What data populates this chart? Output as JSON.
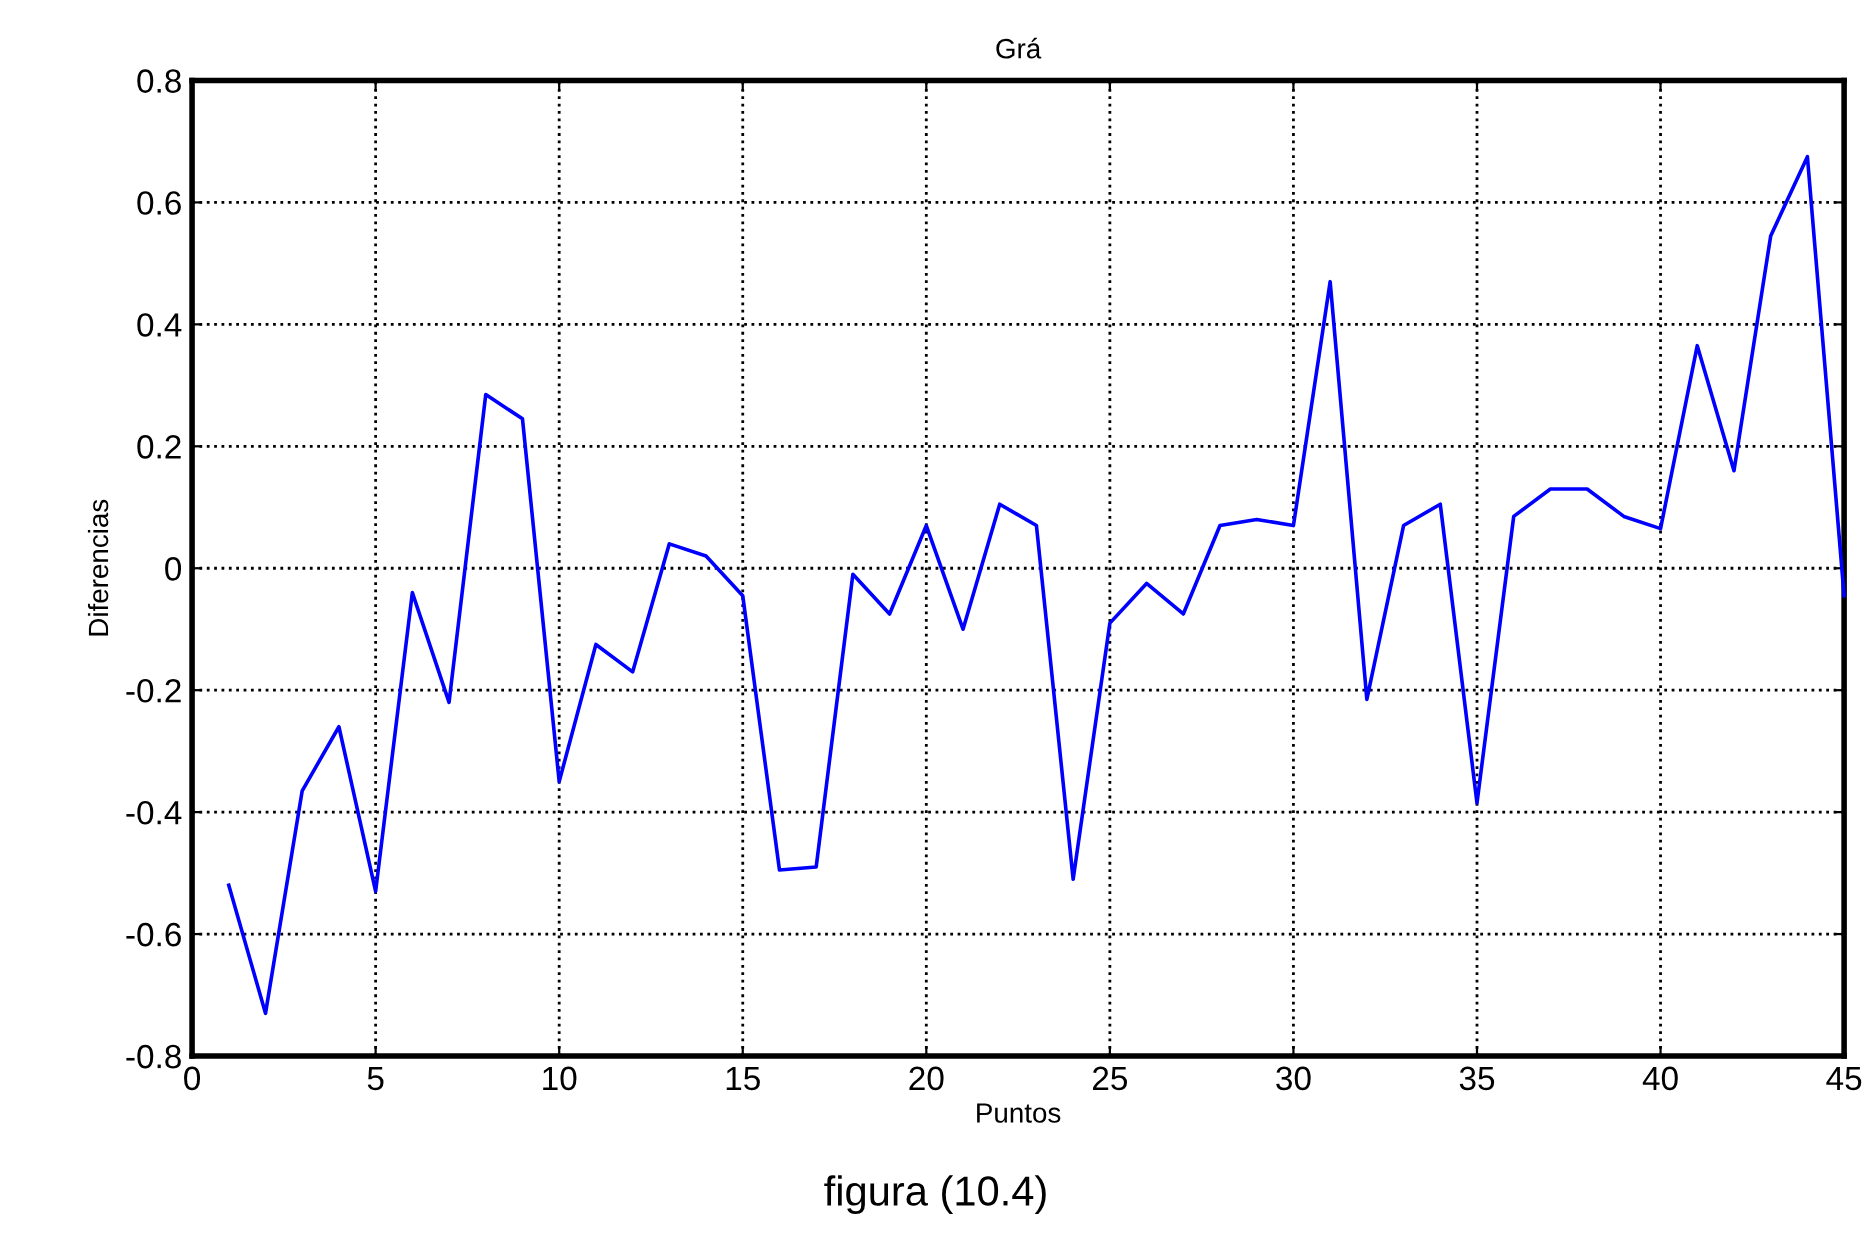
{
  "chart_data": {
    "type": "line",
    "title": "Grá",
    "xlabel": "Puntos",
    "ylabel": "Diferencias",
    "annotations": [
      "figura (10.4)"
    ],
    "x": [
      1,
      2,
      3,
      4,
      5,
      6,
      7,
      8,
      9,
      10,
      11,
      12,
      13,
      14,
      15,
      16,
      17,
      18,
      19,
      20,
      21,
      22,
      23,
      24,
      25,
      26,
      27,
      28,
      29,
      30,
      31,
      32,
      33,
      34,
      35,
      36,
      37,
      38,
      39,
      40,
      41,
      42,
      43,
      44,
      45
    ],
    "series": [
      {
        "color": "#0000ff",
        "values": [
          -0.52,
          -0.73,
          -0.365,
          -0.26,
          -0.53,
          -0.04,
          -0.22,
          0.285,
          0.245,
          -0.35,
          -0.125,
          -0.17,
          0.04,
          0.02,
          -0.045,
          -0.495,
          -0.49,
          -0.01,
          -0.075,
          0.07,
          -0.1,
          0.105,
          0.07,
          -0.51,
          -0.09,
          -0.025,
          -0.075,
          0.07,
          0.08,
          0.07,
          0.47,
          -0.215,
          0.07,
          0.105,
          -0.385,
          0.085,
          0.13,
          0.13,
          0.085,
          0.065,
          0.365,
          0.16,
          0.545,
          0.675,
          -0.045
        ]
      }
    ],
    "xlim": [
      0,
      45
    ],
    "xticks": [
      0,
      5,
      10,
      15,
      20,
      25,
      30,
      35,
      40,
      45
    ],
    "ylim": [
      -0.8,
      0.8
    ],
    "yticks": [
      -0.8,
      -0.6,
      -0.4,
      -0.2,
      0,
      0.2,
      0.4,
      0.6,
      0.8
    ],
    "grid": true,
    "line_style": "solid",
    "marker": "none"
  }
}
